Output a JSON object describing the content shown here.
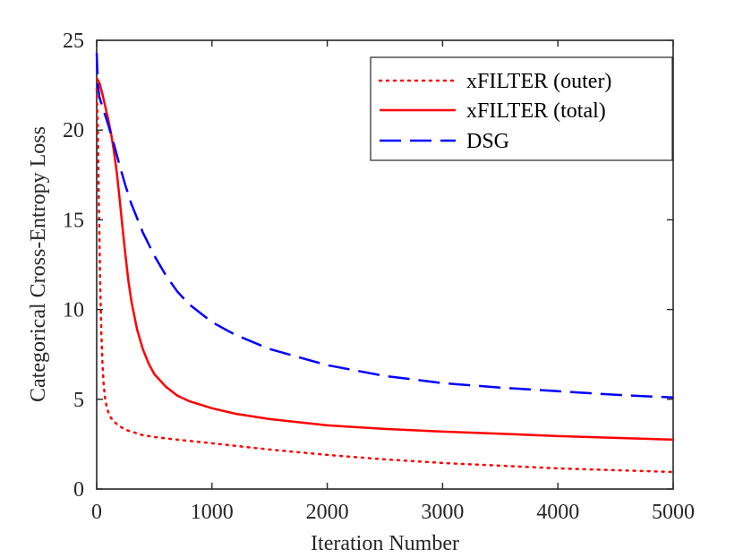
{
  "chart_data": {
    "type": "line",
    "title": "",
    "xlabel": "Iteration Number",
    "ylabel": "Categorical Cross-Entropy Loss",
    "xlim": [
      0,
      5000
    ],
    "ylim": [
      0,
      25
    ],
    "xticks": [
      0,
      1000,
      2000,
      3000,
      4000,
      5000
    ],
    "yticks": [
      0,
      5,
      10,
      15,
      20,
      25
    ],
    "grid": false,
    "legend_position": "top-right",
    "series": [
      {
        "name": "xFILTER (outer)",
        "color": "#ff0000",
        "style": "dotted",
        "x": [
          0,
          10,
          20,
          30,
          40,
          50,
          60,
          70,
          80,
          90,
          100,
          120,
          150,
          200,
          250,
          300,
          400,
          500,
          700,
          1000,
          1500,
          2000,
          2500,
          3000,
          3500,
          4000,
          4500,
          5000
        ],
        "y": [
          22.3,
          20.0,
          15.5,
          11.5,
          8.8,
          7.0,
          5.9,
          5.2,
          4.8,
          4.5,
          4.3,
          4.0,
          3.75,
          3.5,
          3.3,
          3.2,
          3.0,
          2.9,
          2.75,
          2.55,
          2.2,
          1.9,
          1.65,
          1.45,
          1.3,
          1.15,
          1.05,
          0.95
        ]
      },
      {
        "name": "xFILTER (total)",
        "color": "#ff0000",
        "style": "solid",
        "x": [
          0,
          25,
          50,
          75,
          100,
          125,
          150,
          175,
          200,
          225,
          250,
          275,
          300,
          350,
          400,
          450,
          500,
          600,
          700,
          800,
          1000,
          1200,
          1500,
          2000,
          2500,
          3000,
          3500,
          4000,
          4500,
          5000
        ],
        "y": [
          22.9,
          22.6,
          22.0,
          21.3,
          20.6,
          19.8,
          18.8,
          17.6,
          16.1,
          14.5,
          13.0,
          11.6,
          10.5,
          8.9,
          7.8,
          7.0,
          6.4,
          5.7,
          5.2,
          4.9,
          4.5,
          4.2,
          3.9,
          3.55,
          3.35,
          3.2,
          3.08,
          2.95,
          2.85,
          2.75
        ]
      },
      {
        "name": "DSG",
        "color": "#0000ff",
        "style": "dashed",
        "x": [
          0,
          10,
          25,
          50,
          100,
          150,
          200,
          250,
          300,
          400,
          500,
          600,
          700,
          800,
          1000,
          1200,
          1500,
          2000,
          2500,
          3000,
          3500,
          4000,
          4500,
          5000
        ],
        "y": [
          24.3,
          22.5,
          21.8,
          21.3,
          20.3,
          19.2,
          18.0,
          16.9,
          15.9,
          14.3,
          13.0,
          11.9,
          11.0,
          10.3,
          9.3,
          8.6,
          7.8,
          6.9,
          6.3,
          5.9,
          5.65,
          5.45,
          5.25,
          5.1
        ]
      }
    ]
  }
}
